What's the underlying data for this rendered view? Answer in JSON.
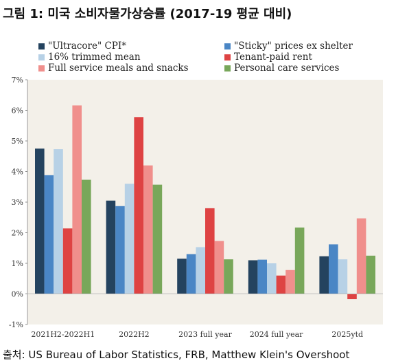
{
  "figure_title": "그림 1: 미국 소비자물가상승률 (2017-19 평균 대비)",
  "source": "출처: US Bureau of Labor Statistics, FRB, Matthew Klein's Overshoot",
  "chart_data": {
    "type": "bar",
    "categories": [
      "2021H2-2022H1",
      "2022H2",
      "2023 full year",
      "2024 full year",
      "2025ytd"
    ],
    "series": [
      {
        "name": "\"Ultracore\" CPI*",
        "color": "#24435f",
        "values": [
          4.75,
          3.05,
          1.15,
          1.1,
          1.23
        ]
      },
      {
        "name": "\"Sticky\" prices ex shelter",
        "color": "#4a86c5",
        "values": [
          3.88,
          2.87,
          1.3,
          1.12,
          1.62
        ]
      },
      {
        "name": "16% trimmed mean",
        "color": "#b7d1e6",
        "values": [
          4.73,
          3.6,
          1.53,
          1.0,
          1.13
        ]
      },
      {
        "name": "Tenant-paid rent",
        "color": "#de4343",
        "values": [
          2.14,
          5.78,
          2.8,
          0.6,
          -0.17
        ]
      },
      {
        "name": "Full service meals and snacks",
        "color": "#f08f8c",
        "values": [
          6.16,
          4.2,
          1.73,
          0.78,
          2.47
        ]
      },
      {
        "name": "Personal care services",
        "color": "#78a75a",
        "values": [
          3.73,
          3.57,
          1.13,
          2.17,
          1.25
        ]
      }
    ],
    "ylim": [
      -1,
      7
    ],
    "yticks": [
      -1,
      0,
      1,
      2,
      3,
      4,
      5,
      6,
      7
    ],
    "ytick_labels": [
      "-1%",
      "0%",
      "1%",
      "2%",
      "3%",
      "4%",
      "5%",
      "6%",
      "7%"
    ],
    "legend_position": "top",
    "grid": false,
    "plot_background": "#f3f0e9"
  }
}
